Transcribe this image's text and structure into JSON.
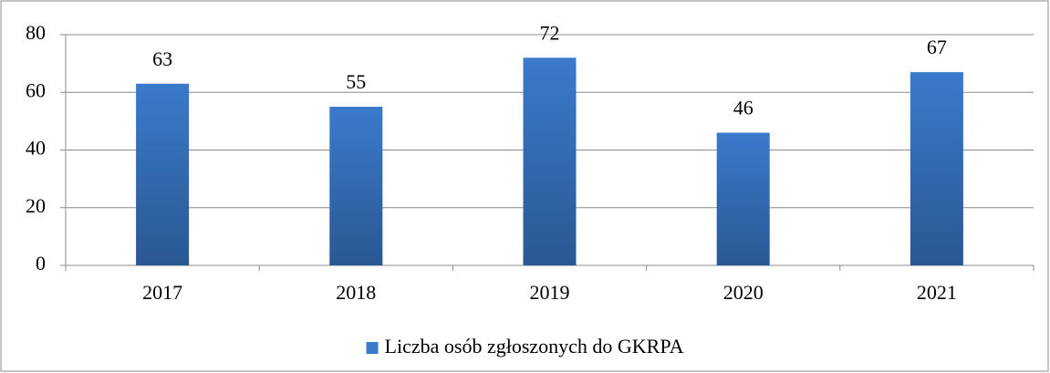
{
  "chart_data": {
    "type": "bar",
    "categories": [
      "2017",
      "2018",
      "2019",
      "2020",
      "2021"
    ],
    "series": [
      {
        "name": "Liczba osób zgłoszonych do GKRPA",
        "color": "#3a7acb",
        "values": [
          63,
          55,
          72,
          46,
          67
        ]
      }
    ],
    "ylim": [
      0,
      80
    ],
    "yticks": [
      0,
      20,
      40,
      60,
      80
    ],
    "grid": true,
    "legend": "bottom"
  }
}
